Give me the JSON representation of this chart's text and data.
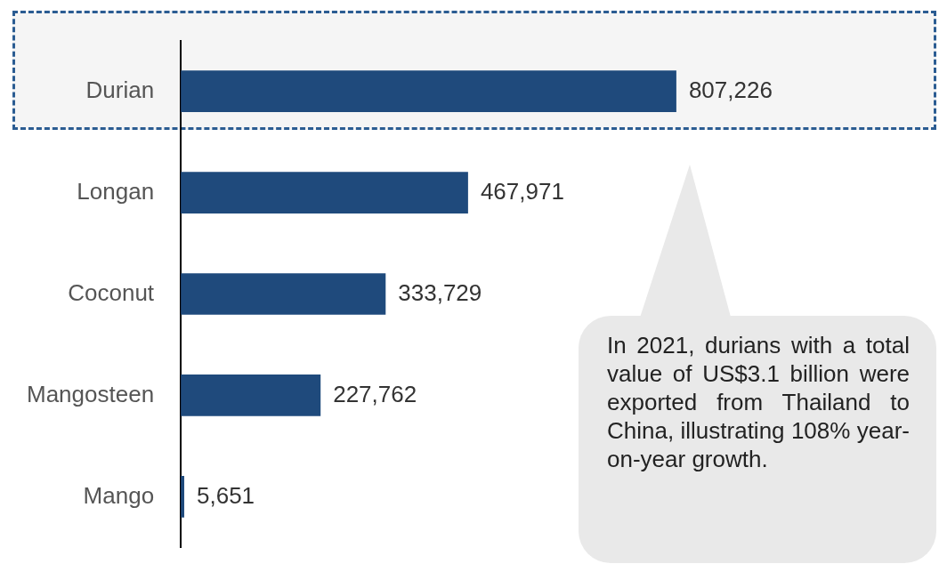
{
  "chart_data": {
    "type": "bar",
    "orientation": "horizontal",
    "categories": [
      "Durian",
      "Longan",
      "Coconut",
      "Mangosteen",
      "Mango"
    ],
    "values": [
      807226,
      467971,
      333729,
      227762,
      5651
    ],
    "color": "#1f4a7c",
    "value_labels": [
      "807,226",
      "467,971",
      "333,729",
      "227,762",
      "5,651"
    ],
    "tick_labels": "y",
    "grid": false,
    "legend": false,
    "annotations": [
      "In 2021, durians with a total value of US$3.1 billion were exported from Thailand to China, illustrating 108% year-on-year growth."
    ]
  }
}
